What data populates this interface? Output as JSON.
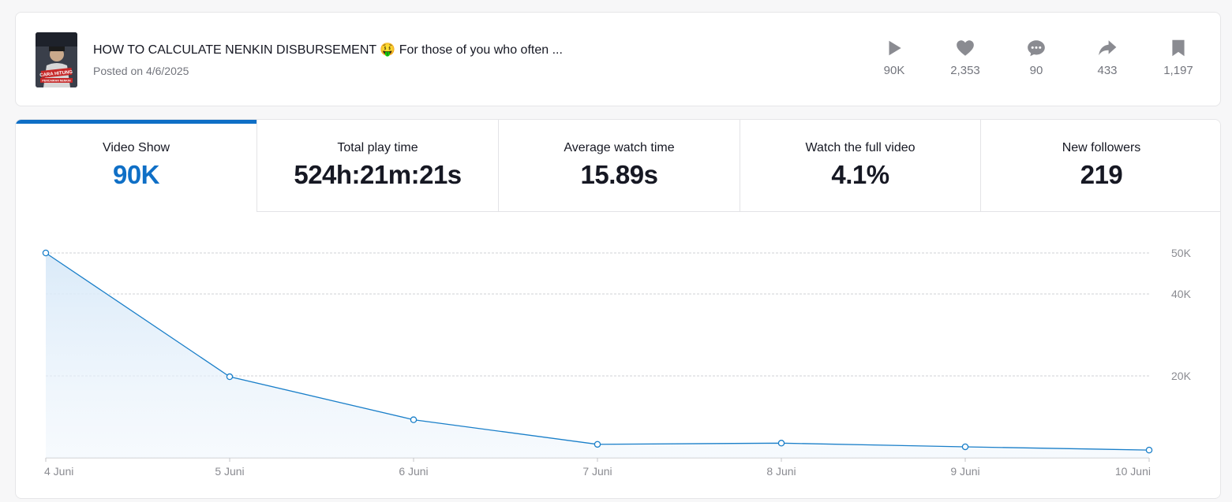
{
  "video": {
    "title": "HOW TO CALCULATE NENKIN DISBURSEMENT 🤑 For those of you who often ...",
    "posted": "Posted on 4/6/2025",
    "thumbnail_caption": "CARA HITUNG",
    "thumbnail_caption_sub": "PENCAIRAN NENKIN"
  },
  "stats": [
    {
      "icon": "play-icon",
      "value": "90K"
    },
    {
      "icon": "heart-icon",
      "value": "2,353"
    },
    {
      "icon": "comment-icon",
      "value": "90"
    },
    {
      "icon": "share-icon",
      "value": "433"
    },
    {
      "icon": "bookmark-icon",
      "value": "1,197"
    }
  ],
  "metrics": [
    {
      "label": "Video Show",
      "value": "90K"
    },
    {
      "label": "Total play time",
      "value": "524h:21m:21s"
    },
    {
      "label": "Average watch time",
      "value": "15.89s"
    },
    {
      "label": "Watch the full video",
      "value": "4.1%"
    },
    {
      "label": "New followers",
      "value": "219"
    }
  ],
  "colors": {
    "accent": "#0f6fc6",
    "muted": "#73757d",
    "line": "#1a7fc9"
  },
  "chart_data": {
    "type": "area",
    "categories": [
      "4 Juni",
      "5 Juni",
      "6 Juni",
      "7 Juni",
      "8 Juni",
      "9 Juni",
      "10 Juni"
    ],
    "values": [
      50000,
      19800,
      9300,
      3300,
      3600,
      2700,
      1900
    ],
    "ylim": [
      0,
      50000
    ],
    "yticks": [
      20000,
      40000,
      50000
    ],
    "ytick_labels": [
      "20K",
      "40K",
      "50K"
    ],
    "y_axis_position": "right",
    "grid": true,
    "legend": "none"
  }
}
